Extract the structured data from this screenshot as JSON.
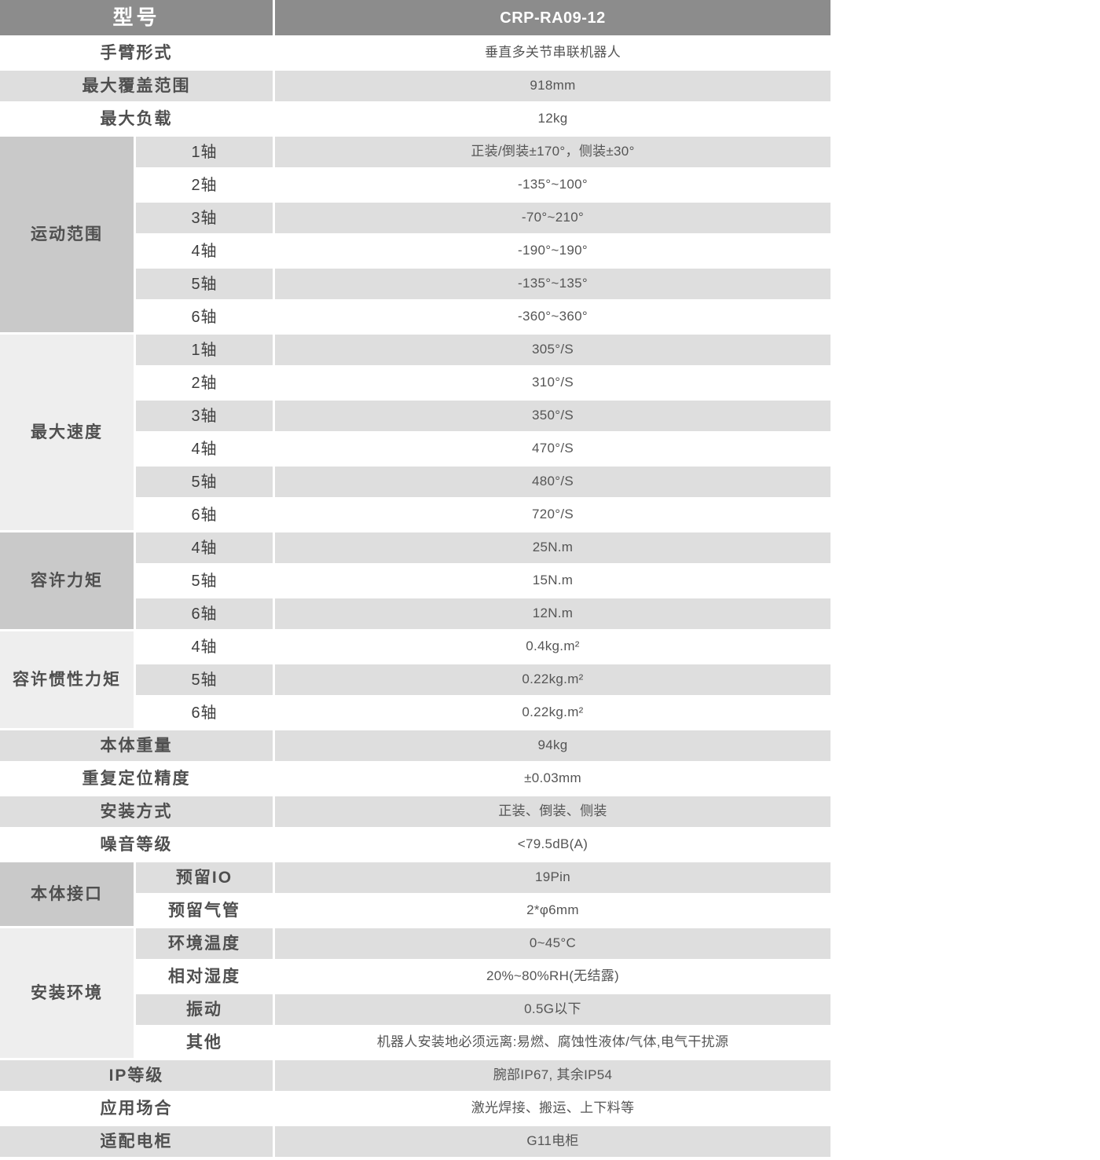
{
  "colors": {
    "header_bg": "#8c8c8c",
    "header_text": "#ffffff",
    "stripe_gray": "#dedede",
    "stripe_white": "#ffffff",
    "group_dark": "#c9c9c9",
    "group_light": "#eeeeee",
    "label_text": "#4f4f4f",
    "axis_text": "#3f3f3f",
    "value_text": "#555555"
  },
  "header": {
    "model_label": "型号",
    "model_value": "CRP-RA09-12"
  },
  "spec_rows": [
    {
      "type": "simple",
      "label": "手臂形式",
      "value": "垂直多关节串联机器人"
    },
    {
      "type": "simple",
      "label": "最大覆盖范围",
      "value": "918mm"
    },
    {
      "type": "simple",
      "label": "最大负载",
      "value": "12kg"
    },
    {
      "type": "group",
      "label": "运动范围",
      "shade": "dark",
      "sub_bold": false,
      "items": [
        {
          "label": "1轴",
          "value": "正装/倒装±170°，侧装±30°"
        },
        {
          "label": "2轴",
          "value": "-135°~100°"
        },
        {
          "label": "3轴",
          "value": "-70°~210°"
        },
        {
          "label": "4轴",
          "value": "-190°~190°"
        },
        {
          "label": "5轴",
          "value": "-135°~135°"
        },
        {
          "label": "6轴",
          "value": "-360°~360°"
        }
      ]
    },
    {
      "type": "group",
      "label": "最大速度",
      "shade": "light",
      "sub_bold": false,
      "items": [
        {
          "label": "1轴",
          "value": "305°/S"
        },
        {
          "label": "2轴",
          "value": "310°/S"
        },
        {
          "label": "3轴",
          "value": "350°/S"
        },
        {
          "label": "4轴",
          "value": "470°/S"
        },
        {
          "label": "5轴",
          "value": "480°/S"
        },
        {
          "label": "6轴",
          "value": "720°/S"
        }
      ]
    },
    {
      "type": "group",
      "label": "容许力矩",
      "shade": "dark",
      "sub_bold": false,
      "items": [
        {
          "label": "4轴",
          "value": "25N.m"
        },
        {
          "label": "5轴",
          "value": "15N.m"
        },
        {
          "label": "6轴",
          "value": "12N.m"
        }
      ]
    },
    {
      "type": "group",
      "label": "容许惯性力矩",
      "shade": "light",
      "sub_bold": false,
      "items": [
        {
          "label": "4轴",
          "value": "0.4kg.m²"
        },
        {
          "label": "5轴",
          "value": "0.22kg.m²"
        },
        {
          "label": "6轴",
          "value": "0.22kg.m²"
        }
      ]
    },
    {
      "type": "simple",
      "label": "本体重量",
      "value": "94kg"
    },
    {
      "type": "simple",
      "label": "重复定位精度",
      "value": "±0.03mm"
    },
    {
      "type": "simple",
      "label": "安装方式",
      "value": "正装、倒装、侧装"
    },
    {
      "type": "simple",
      "label": "噪音等级",
      "value": "<79.5dB(A)"
    },
    {
      "type": "group",
      "label": "本体接口",
      "shade": "dark",
      "sub_bold": true,
      "items": [
        {
          "label": "预留IO",
          "value": "19Pin"
        },
        {
          "label": "预留气管",
          "value": "2*φ6mm"
        }
      ]
    },
    {
      "type": "group",
      "label": "安装环境",
      "shade": "light",
      "sub_bold": true,
      "items": [
        {
          "label": "环境温度",
          "value": "0~45°C"
        },
        {
          "label": "相对湿度",
          "value": "20%~80%RH(无结露)"
        },
        {
          "label": "振动",
          "value": "0.5G以下"
        },
        {
          "label": "其他",
          "value": "机器人安装地必须远离:易燃、腐蚀性液体/气体,电气干扰源"
        }
      ]
    },
    {
      "type": "simple",
      "label": "IP等级",
      "value": "腕部IP67, 其余IP54"
    },
    {
      "type": "simple",
      "label": "应用场合",
      "value": "激光焊接、搬运、上下料等"
    },
    {
      "type": "simple",
      "label": "适配电柜",
      "value": "G11电柜"
    }
  ]
}
